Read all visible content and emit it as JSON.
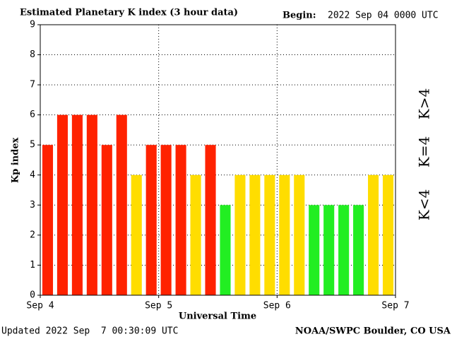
{
  "chart_data": {
    "type": "bar",
    "title": "Estimated Planetary K index (3 hour data)",
    "begin_label": "Begin:",
    "begin_value": "2022 Sep 04 0000 UTC",
    "y_label": "Kp index",
    "x_label": "Universal Time",
    "updated": "Updated 2022 Sep  7 00:30:09 UTC",
    "credit": "NOAA/SWPC Boulder, CO USA",
    "x": [
      0,
      3,
      6,
      9,
      12,
      15,
      18,
      21,
      24,
      27,
      30,
      33,
      36,
      39,
      42,
      45,
      48,
      51,
      54,
      57,
      60,
      63,
      66,
      69
    ],
    "bar_width": 3,
    "values": [
      5,
      6,
      6,
      6,
      5,
      6,
      4,
      5,
      5,
      5,
      4,
      5,
      3,
      4,
      4,
      4,
      4,
      4,
      3,
      3,
      3,
      3,
      4,
      4
    ],
    "colors": [
      "#ff2200",
      "#ff2200",
      "#ff2200",
      "#ff2200",
      "#ff2200",
      "#ff2200",
      "#ffdd00",
      "#ff2200",
      "#ff2200",
      "#ff2200",
      "#ffdd00",
      "#ff2200",
      "#22ee22",
      "#ffdd00",
      "#ffdd00",
      "#ffdd00",
      "#ffdd00",
      "#ffdd00",
      "#22ee22",
      "#22ee22",
      "#22ee22",
      "#22ee22",
      "#ffdd00",
      "#ffdd00"
    ],
    "legend": [
      {
        "label": "K<4",
        "color": "#22ee22"
      },
      {
        "label": "K=4",
        "color": "#ffdd00"
      },
      {
        "label": "K>4",
        "color": "#ff2200"
      }
    ],
    "xlim": [
      0,
      72
    ],
    "xticks": [
      {
        "value": 0,
        "label": "Sep 4"
      },
      {
        "value": 24,
        "label": "Sep 5"
      },
      {
        "value": 48,
        "label": "Sep 6"
      },
      {
        "value": 72,
        "label": "Sep 7"
      }
    ],
    "ylim": [
      0,
      9
    ],
    "yticks": [
      0,
      1,
      2,
      3,
      4,
      5,
      6,
      7,
      8,
      9
    ],
    "grid": true
  }
}
